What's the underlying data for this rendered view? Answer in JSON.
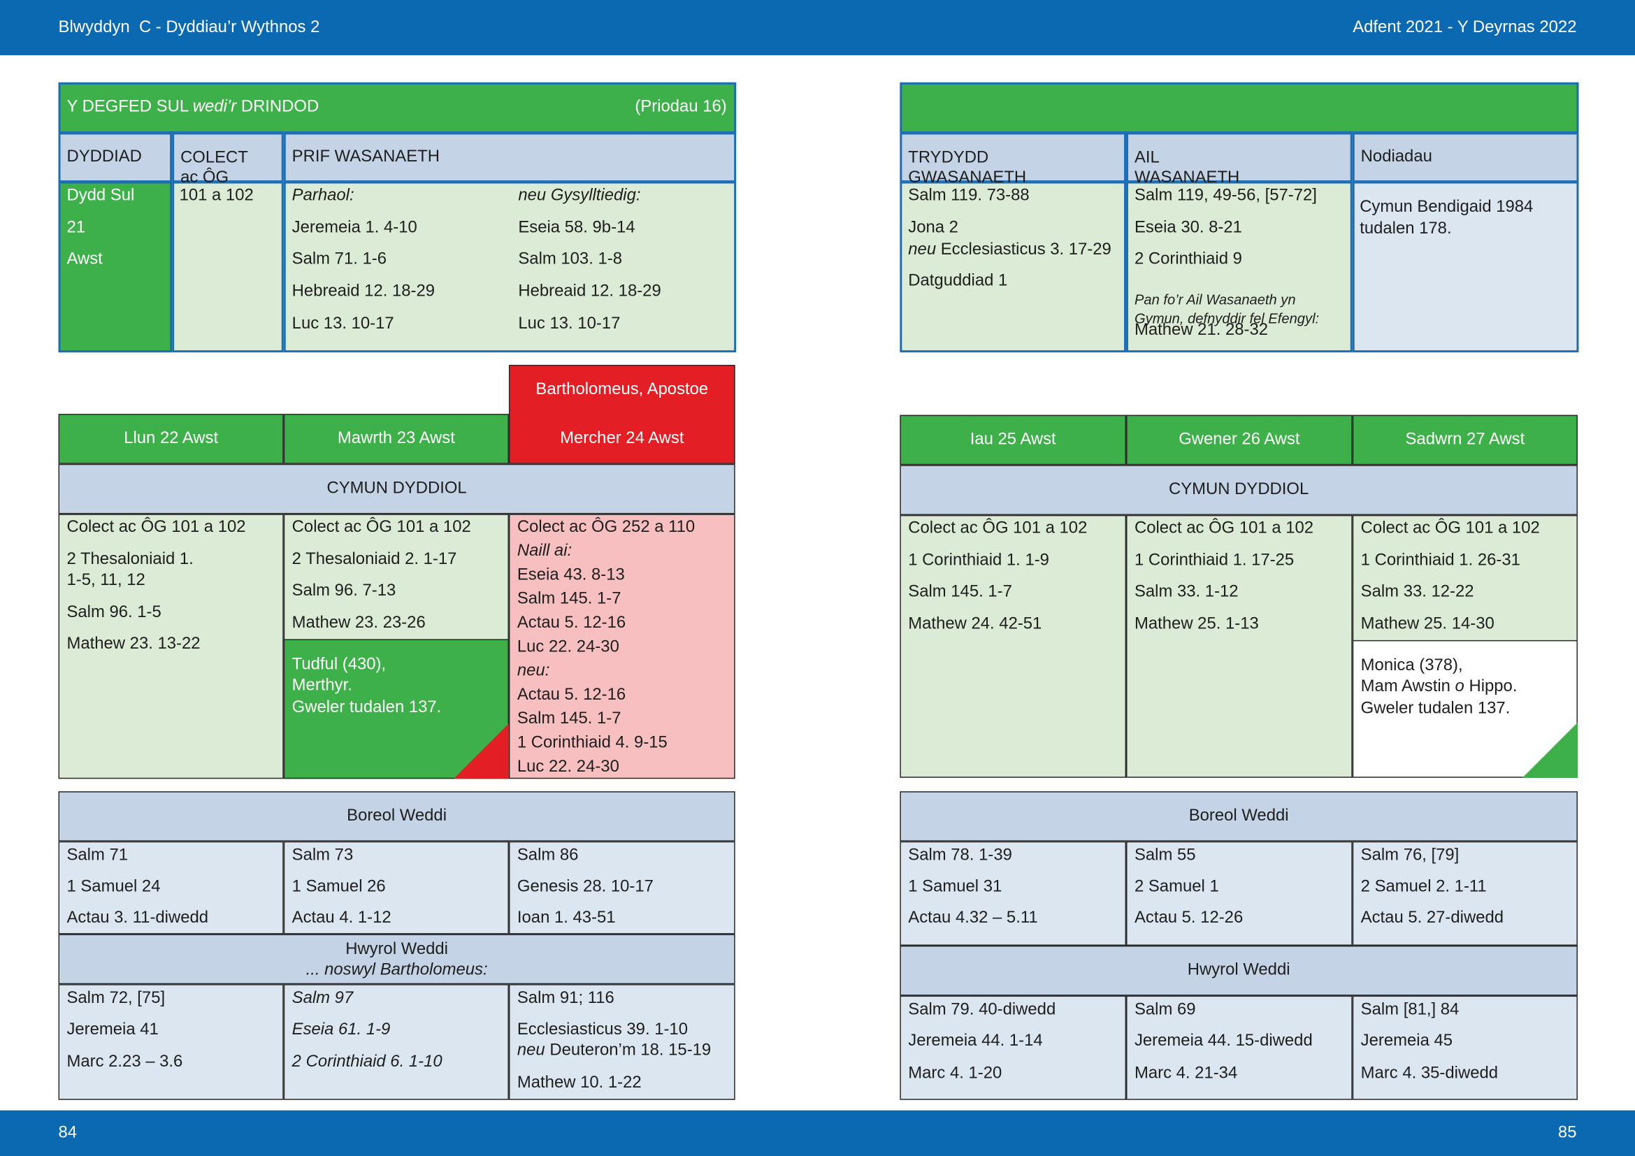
{
  "header": {
    "left": "Blwyddyn  C - Dyddiau’r Wythnos 2",
    "right": "Adfent 2021 - Y Deyrnas 2022"
  },
  "footer": {
    "left": "84",
    "right": "85"
  },
  "sunday": {
    "title": [
      "Y DEGFED SUL ",
      {
        "italic": "wedi’r"
      },
      " DRINDOD"
    ],
    "note": "(Priodau 16)",
    "columns": [
      "DYDDIAD",
      "COLECT\nac ÔG",
      "PRIF WASANAETH",
      "TRYDYDD\nGWASANAETH",
      "AIL\nWASANAETH",
      "Nodiadau"
    ],
    "date": [
      "Dydd Sul",
      "21",
      "Awst"
    ],
    "collect": "101 a 102",
    "principal": {
      "heading": "Parhaol:",
      "readings": [
        "Jeremeia 1. 4-10",
        "Salm 71. 1-6",
        "Hebreaid 12. 18-29",
        "Luc 13. 10-17"
      ]
    },
    "related": {
      "heading": "neu Gysylltiedig:",
      "readings": [
        "Eseia 58. 9b-14",
        "Salm 103. 1-8",
        "Hebreaid 12. 18-29",
        "Luc 13. 10-17"
      ]
    },
    "third": [
      "Salm 119. 73-88",
      "Jona 2",
      [
        {
          "italic": "neu"
        },
        " Ecclesiasticus 3. 17-29"
      ],
      "Datguddiad 1"
    ],
    "second": [
      "Salm 119, 49-56, [57-72]",
      "Eseia 30. 8-21",
      "2 Corinthiaid 9"
    ],
    "second_note": "Pan fo’r Ail Wasanaeth yn\nGymun, defnyddir fel Efengyl:",
    "second_gospel": "Mathew 21. 28-32",
    "notes": "Cymun Bendigaid 1984\ntudalen 178."
  },
  "sections": {
    "communion": "CYMUN DYDDIOL",
    "morning": "Boreol Weddi",
    "evening": "Hwyrol Weddi",
    "eve_note": "... noswyl Bartholomeus:"
  },
  "days": [
    {
      "date": "Llun 22 Awst",
      "communion": [
        "Colect ac ÔG 101 a 102",
        "2 Thesaloniaid 1.\n1-5, 11, 12",
        "Salm 96. 1-5",
        "Mathew 23. 13-22"
      ],
      "morning": [
        "Salm 71",
        "1 Samuel 24",
        "Actau 3. 11-diwedd"
      ],
      "evening": [
        "Salm 72, [75]",
        "Jeremeia 41",
        "Marc 2.23 – 3.6"
      ]
    },
    {
      "date": "Mawrth 23 Awst",
      "communion": [
        "Colect ac ÔG 101 a 102",
        "2 Thesaloniaid 2. 1-17",
        "Salm 96. 7-13",
        "Mathew 23. 23-26"
      ],
      "commemoration": {
        "name": "Tudful (430),\nMerthyr.",
        "ref": "Gweler tudalen 137."
      },
      "morning": [
        "Salm 73",
        "1 Samuel 26",
        "Actau 4. 1-12"
      ],
      "evening": [
        [
          {
            "italic": "Salm 97"
          }
        ],
        [
          {
            "italic": "Eseia 61. 1-9"
          }
        ],
        [
          {
            "italic": "2 Corinthiaid 6. 1-10"
          }
        ]
      ]
    },
    {
      "date": "Mercher 24 Awst",
      "festival": "Bartholomeus, Apostoe",
      "communion": [
        "Colect ac ÔG 252 a 110",
        [
          {
            "italic": "Naill ai:"
          }
        ],
        "Eseia 43. 8-13",
        "Salm 145. 1-7",
        "Actau 5. 12-16",
        "Luc 22. 24-30",
        [
          {
            "italic": "neu:"
          }
        ],
        "Actau 5. 12-16",
        "Salm 145. 1-7",
        "1 Corinthiaid 4. 9-15",
        "Luc 22. 24-30"
      ],
      "morning": [
        "Salm 86",
        "Genesis 28. 10-17",
        "Ioan 1. 43-51"
      ],
      "evening": [
        "Salm 91; 116",
        "Ecclesiasticus 39. 1-10",
        [
          {
            "italic": "neu"
          },
          " Deuteron’m 18. 15-19"
        ],
        "Mathew 10. 1-22"
      ]
    },
    {
      "date": "Iau 25 Awst",
      "communion": [
        "Colect ac ÔG 101 a 102",
        "1 Corinthiaid 1. 1-9",
        "Salm 145. 1-7",
        "Mathew 24. 42-51"
      ],
      "morning": [
        "Salm 78. 1-39",
        "1 Samuel 31",
        "Actau 4.32 – 5.11"
      ],
      "evening": [
        "Salm 79. 40-diwedd",
        "Jeremeia 44. 1-14",
        "Marc 4. 1-20"
      ]
    },
    {
      "date": "Gwener 26 Awst",
      "communion": [
        "Colect ac ÔG 101 a 102",
        "1 Corinthiaid 1. 17-25",
        "Salm 33. 1-12",
        "Mathew 25. 1-13"
      ],
      "morning": [
        "Salm 55",
        "2 Samuel 1",
        "Actau 5. 12-26"
      ],
      "evening": [
        "Salm 69",
        "Jeremeia 44. 15-diwedd",
        "Marc 4. 21-34"
      ]
    },
    {
      "date": "Sadwrn 27 Awst",
      "communion": [
        "Colect ac ÔG 101 a 102",
        "1 Corinthiaid 1. 26-31",
        "Salm 33. 12-22",
        "Mathew 25. 14-30"
      ],
      "commemoration": {
        "name": [
          "Monica (378),\nMam Awstin ",
          {
            "italic": "o"
          },
          " Hippo."
        ],
        "ref": "Gweler tudalen 137."
      },
      "morning": [
        "Salm 76, [79]",
        "2 Samuel 2. 1-11",
        "Actau 5. 27-diwedd"
      ],
      "evening": [
        "Salm [81,] 84",
        "Jeremeia 45",
        "Marc 4. 35-diwedd"
      ]
    }
  ]
}
